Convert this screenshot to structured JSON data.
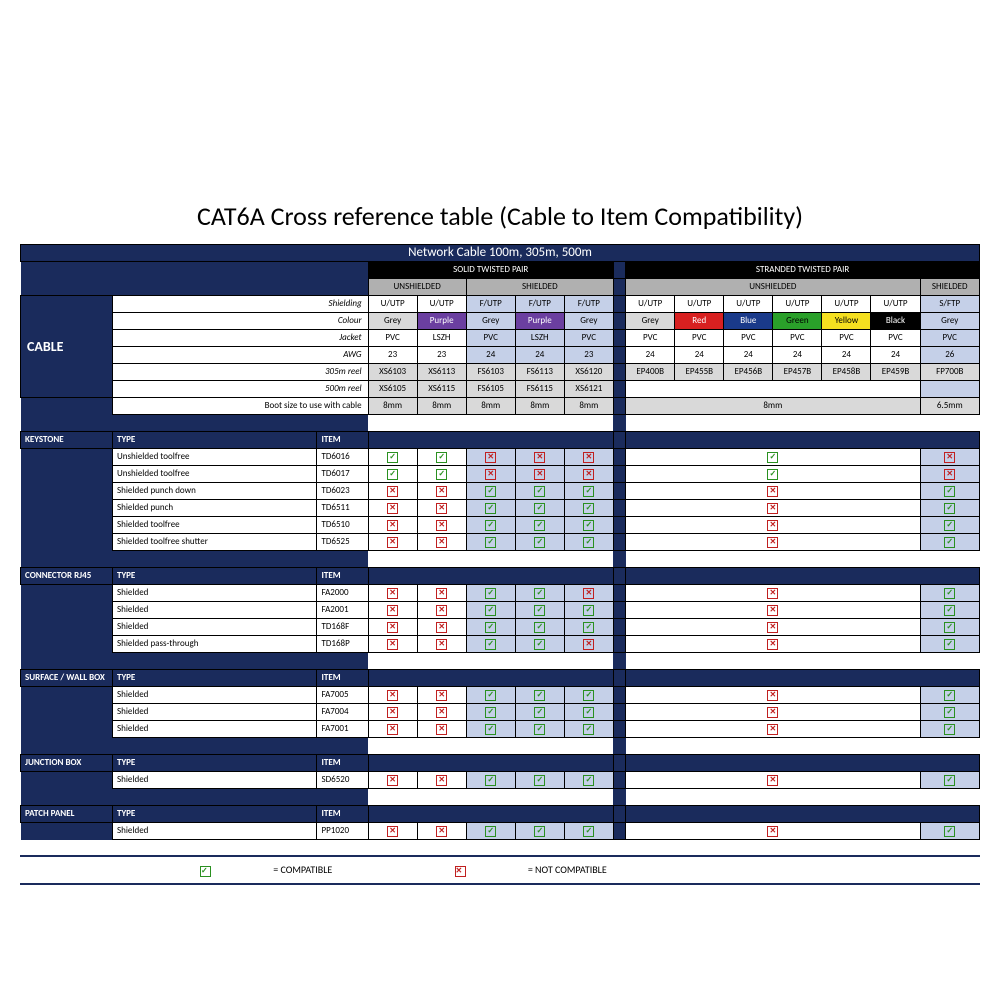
{
  "title": "CAT6A Cross reference table (Cable to Item Compatibility)",
  "subtitle": "Network Cable 100m, 305m, 500m",
  "groups": {
    "solid": "SOLID TWISTED PAIR",
    "stranded": "STRANDED TWISTED PAIR",
    "unshielded": "UNSHIELDED",
    "shielded": "SHIELDED"
  },
  "rowLabels": {
    "cable": "CABLE",
    "shielding": "Shielding",
    "colour": "Colour",
    "jacket": "Jacket",
    "awg": "AWG",
    "r305": "305m reel",
    "r500": "500m reel",
    "boot": "Boot size to use with cable"
  },
  "solid": {
    "shielding": [
      "U/UTP",
      "U/UTP",
      "F/UTP",
      "F/UTP",
      "F/UTP"
    ],
    "colour": [
      {
        "t": "Grey",
        "c": "lgrey"
      },
      {
        "t": "Purple",
        "c": "purple"
      },
      {
        "t": "Grey",
        "c": "lgrey"
      },
      {
        "t": "Purple",
        "c": "purple"
      },
      {
        "t": "Grey",
        "c": "lgrey"
      }
    ],
    "jacket": [
      "PVC",
      "LSZH",
      "PVC",
      "LSZH",
      "PVC"
    ],
    "awg": [
      "23",
      "23",
      "24",
      "24",
      "23"
    ],
    "r305": [
      "XS6103",
      "XS6113",
      "FS6103",
      "FS6113",
      "XS6120"
    ],
    "r500": [
      "XS6105",
      "XS6115",
      "FS6105",
      "FS6115",
      "XS6121"
    ],
    "boot": [
      "8mm",
      "8mm",
      "8mm",
      "8mm",
      "8mm"
    ]
  },
  "stranded": {
    "shielding": [
      "U/UTP",
      "U/UTP",
      "U/UTP",
      "U/UTP",
      "U/UTP",
      "U/UTP",
      "S/FTP"
    ],
    "colour": [
      {
        "t": "Grey",
        "c": "lgrey"
      },
      {
        "t": "Red",
        "c": "red"
      },
      {
        "t": "Blue",
        "c": "blue"
      },
      {
        "t": "Green",
        "c": "green"
      },
      {
        "t": "Yellow",
        "c": "yellow"
      },
      {
        "t": "Black",
        "c": "cblack"
      },
      {
        "t": "Grey",
        "c": "lgrey"
      }
    ],
    "jacket": [
      "PVC",
      "PVC",
      "PVC",
      "PVC",
      "PVC",
      "PVC",
      "PVC"
    ],
    "awg": [
      "24",
      "24",
      "24",
      "24",
      "24",
      "24",
      "26"
    ],
    "r305": [
      "EP400B",
      "EP455B",
      "EP456B",
      "EP457B",
      "EP458B",
      "EP459B",
      "FP700B"
    ],
    "bootU": "8mm",
    "bootS": "6.5mm"
  },
  "sections": [
    {
      "name": "KEYSTONE",
      "type": "TYPE",
      "item": "ITEM",
      "rows": [
        {
          "t": "Unshielded toolfree",
          "i": "TD6016",
          "s": [
            "y",
            "y",
            "n",
            "n",
            "n"
          ],
          "u": "y",
          "sh": "n"
        },
        {
          "t": "Unshielded toolfree",
          "i": "TD6017",
          "s": [
            "y",
            "y",
            "n",
            "n",
            "n"
          ],
          "u": "y",
          "sh": "n"
        },
        {
          "t": "Shielded punch down",
          "i": "TD6023",
          "s": [
            "n",
            "n",
            "y",
            "y",
            "y"
          ],
          "u": "n",
          "sh": "y"
        },
        {
          "t": "Shielded punch",
          "i": "TD6511",
          "s": [
            "n",
            "n",
            "y",
            "y",
            "y"
          ],
          "u": "n",
          "sh": "y"
        },
        {
          "t": "Shielded toolfree",
          "i": "TD6510",
          "s": [
            "n",
            "n",
            "y",
            "y",
            "y"
          ],
          "u": "n",
          "sh": "y"
        },
        {
          "t": "Shielded toolfree shutter",
          "i": "TD6525",
          "s": [
            "n",
            "n",
            "y",
            "y",
            "y"
          ],
          "u": "n",
          "sh": "y"
        }
      ]
    },
    {
      "name": "CONNECTOR RJ45",
      "type": "TYPE",
      "item": "ITEM",
      "rows": [
        {
          "t": "Shielded",
          "i": "FA2000",
          "s": [
            "n",
            "n",
            "y",
            "y",
            "n"
          ],
          "u": "n",
          "sh": "y"
        },
        {
          "t": "Shielded",
          "i": "FA2001",
          "s": [
            "n",
            "n",
            "y",
            "y",
            "y"
          ],
          "u": "n",
          "sh": "y"
        },
        {
          "t": "Shielded",
          "i": "TD168F",
          "s": [
            "n",
            "n",
            "y",
            "y",
            "y"
          ],
          "u": "n",
          "sh": "y"
        },
        {
          "t": "Shielded pass-through",
          "i": "TD168P",
          "s": [
            "n",
            "n",
            "y",
            "y",
            "n"
          ],
          "u": "n",
          "sh": "y"
        }
      ]
    },
    {
      "name": "SURFACE / WALL BOX",
      "type": "TYPE",
      "item": "ITEM",
      "rows": [
        {
          "t": "Shielded",
          "i": "FA7005",
          "s": [
            "n",
            "n",
            "y",
            "y",
            "y"
          ],
          "u": "n",
          "sh": "y"
        },
        {
          "t": "Shielded",
          "i": "FA7004",
          "s": [
            "n",
            "n",
            "y",
            "y",
            "y"
          ],
          "u": "n",
          "sh": "y"
        },
        {
          "t": "Shielded",
          "i": "FA7001",
          "s": [
            "n",
            "n",
            "y",
            "y",
            "y"
          ],
          "u": "n",
          "sh": "y"
        }
      ]
    },
    {
      "name": "JUNCTION BOX",
      "type": "TYPE",
      "item": "ITEM",
      "rows": [
        {
          "t": "Shielded",
          "i": "SD6520",
          "s": [
            "n",
            "n",
            "y",
            "y",
            "y"
          ],
          "u": "n",
          "sh": "y"
        }
      ]
    },
    {
      "name": "PATCH PANEL",
      "type": "TYPE",
      "item": "ITEM",
      "rows": [
        {
          "t": "Shielded",
          "i": "PP1020",
          "s": [
            "n",
            "n",
            "y",
            "y",
            "y"
          ],
          "u": "n",
          "sh": "y"
        }
      ]
    }
  ],
  "legend": {
    "ok": "= COMPATIBLE",
    "no": "= NOT COMPATIBLE"
  },
  "colors": {
    "navy": "#1a2b5c",
    "checkGreen": "#2a9020",
    "crossRed": "#c02020"
  }
}
